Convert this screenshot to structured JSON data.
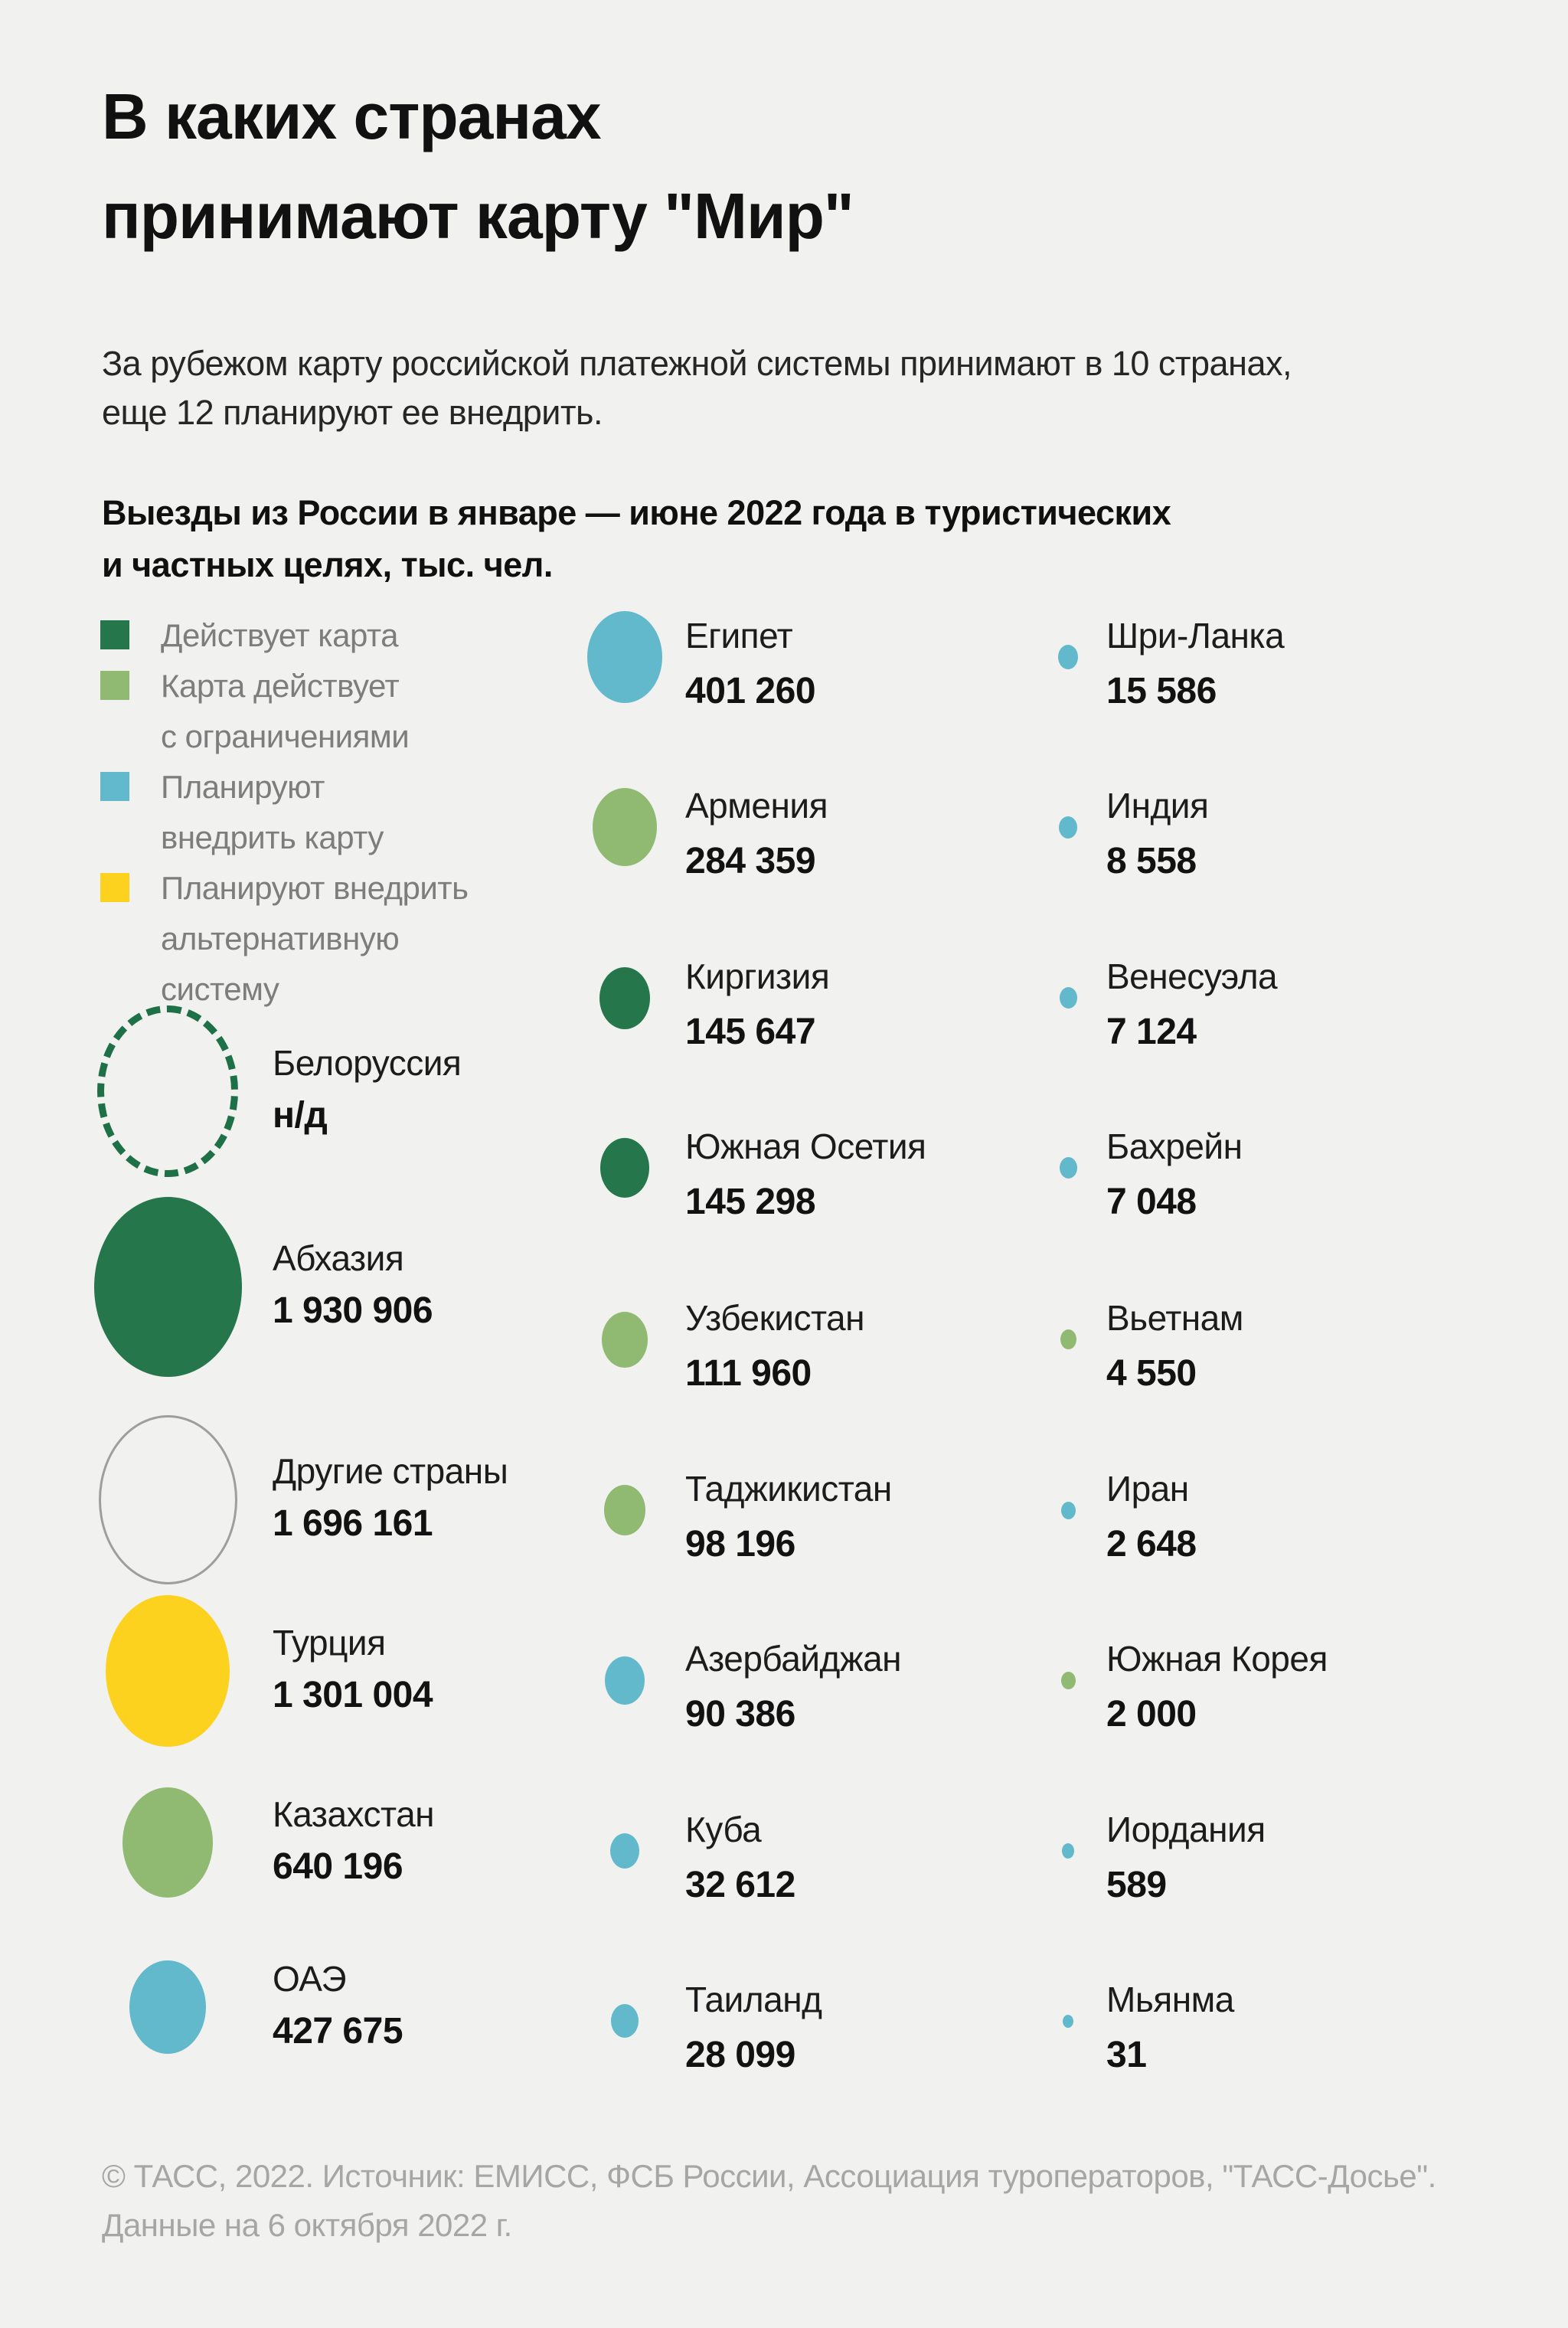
{
  "title": {
    "line1": "В каких странах",
    "line2": "принимают карту \"Мир\""
  },
  "subtitle": {
    "line1": "За рубежом карту российской платежной системы принимают в 10 странах,",
    "line2": "еще 12 планируют ее внедрить."
  },
  "section_heading": {
    "line1": "Выезды из России в январе — июне 2022 года в туристических",
    "line2": "и частных целях, тыс. чел."
  },
  "legend": [
    {
      "category": "active",
      "lines": [
        "Действует карта"
      ]
    },
    {
      "category": "limited",
      "lines": [
        "Карта действует",
        "с ограничениями"
      ]
    },
    {
      "category": "planned",
      "lines": [
        "Планируют",
        "внедрить карту"
      ]
    },
    {
      "category": "alternative",
      "lines": [
        "Планируют внедрить",
        "альтернативную",
        "систему"
      ]
    }
  ],
  "colors": {
    "background": "#f1f1ef",
    "active": "#26764c",
    "limited": "#90ba72",
    "planned": "#63b9cc",
    "alternative": "#fcd21f",
    "outline_gray": "#9e9e9e",
    "dashed_green": "#1e7046"
  },
  "chart_data": {
    "type": "bubble",
    "title": "Выезды из России в январе — июне 2022 года в туристических и частных целях, тыс. чел.",
    "legend_entries": [
      "Действует карта",
      "Карта действует с ограничениями",
      "Планируют внедрить карту",
      "Планируют внедрить альтернативную систему"
    ],
    "columns": [
      {
        "id": "left",
        "entries": [
          {
            "country": "Белоруссия",
            "value": null,
            "value_display": "н/д",
            "category": "active",
            "shape": "dashed-outline",
            "size": 184
          },
          {
            "country": "Абхазия",
            "value": 1930906,
            "value_display": "1 930 906",
            "category": "active",
            "shape": "fill",
            "size": 193
          },
          {
            "country": "Другие страны",
            "value": 1696161,
            "value_display": "1 696 161",
            "category": "other",
            "shape": "outline",
            "size": 181
          },
          {
            "country": "Турция",
            "value": 1301004,
            "value_display": "1 301 004",
            "category": "alternative",
            "shape": "fill",
            "size": 162
          },
          {
            "country": "Казахстан",
            "value": 640196,
            "value_display": "640 196",
            "category": "limited",
            "shape": "fill",
            "size": 118
          },
          {
            "country": "ОАЭ",
            "value": 427675,
            "value_display": "427 675",
            "category": "planned",
            "shape": "fill",
            "size": 100
          }
        ]
      },
      {
        "id": "middle",
        "entries": [
          {
            "country": "Египет",
            "value": 401260,
            "value_display": "401 260",
            "category": "planned",
            "shape": "fill",
            "size": 98
          },
          {
            "country": "Армения",
            "value": 284359,
            "value_display": "284 359",
            "category": "limited",
            "shape": "fill",
            "size": 84
          },
          {
            "country": "Киргизия",
            "value": 145647,
            "value_display": "145 647",
            "category": "active",
            "shape": "fill",
            "size": 66
          },
          {
            "country": "Южная Осетия",
            "value": 145298,
            "value_display": "145 298",
            "category": "active",
            "shape": "fill",
            "size": 64
          },
          {
            "country": "Узбекистан",
            "value": 111960,
            "value_display": "111 960",
            "category": "limited",
            "shape": "fill",
            "size": 60
          },
          {
            "country": "Таджикистан",
            "value": 98196,
            "value_display": "98 196",
            "category": "limited",
            "shape": "fill",
            "size": 54
          },
          {
            "country": "Азербайджан",
            "value": 90386,
            "value_display": "90 386",
            "category": "planned",
            "shape": "fill",
            "size": 52
          },
          {
            "country": "Куба",
            "value": 32612,
            "value_display": "32 612",
            "category": "planned",
            "shape": "fill",
            "size": 38
          },
          {
            "country": "Таиланд",
            "value": 28099,
            "value_display": "28 099",
            "category": "planned",
            "shape": "fill",
            "size": 36
          }
        ]
      },
      {
        "id": "right",
        "entries": [
          {
            "country": "Шри-Ланка",
            "value": 15586,
            "value_display": "15 586",
            "category": "planned",
            "shape": "fill",
            "size": 26
          },
          {
            "country": "Индия",
            "value": 8558,
            "value_display": "8 558",
            "category": "planned",
            "shape": "fill",
            "size": 24
          },
          {
            "country": "Венесуэла",
            "value": 7124,
            "value_display": "7 124",
            "category": "planned",
            "shape": "fill",
            "size": 23
          },
          {
            "country": "Бахрейн",
            "value": 7048,
            "value_display": "7 048",
            "category": "planned",
            "shape": "fill",
            "size": 23
          },
          {
            "country": "Вьетнам",
            "value": 4550,
            "value_display": "4 550",
            "category": "limited",
            "shape": "fill",
            "size": 21
          },
          {
            "country": "Иран",
            "value": 2648,
            "value_display": "2 648",
            "category": "planned",
            "shape": "fill",
            "size": 19
          },
          {
            "country": "Южная Корея",
            "value": 2000,
            "value_display": "2 000",
            "category": "limited",
            "shape": "fill",
            "size": 19
          },
          {
            "country": "Иордания",
            "value": 589,
            "value_display": "589",
            "category": "planned",
            "shape": "fill",
            "size": 16
          },
          {
            "country": "Мьянма",
            "value": 31,
            "value_display": "31",
            "category": "planned",
            "shape": "fill",
            "size": 14
          }
        ]
      }
    ]
  },
  "footer": {
    "line1": "© ТАСС, 2022. Источник: ЕМИСС, ФСБ России, Ассоциация туроператоров, \"ТАСС-Досье\".",
    "line2": "Данные на 6 октября 2022 г."
  }
}
